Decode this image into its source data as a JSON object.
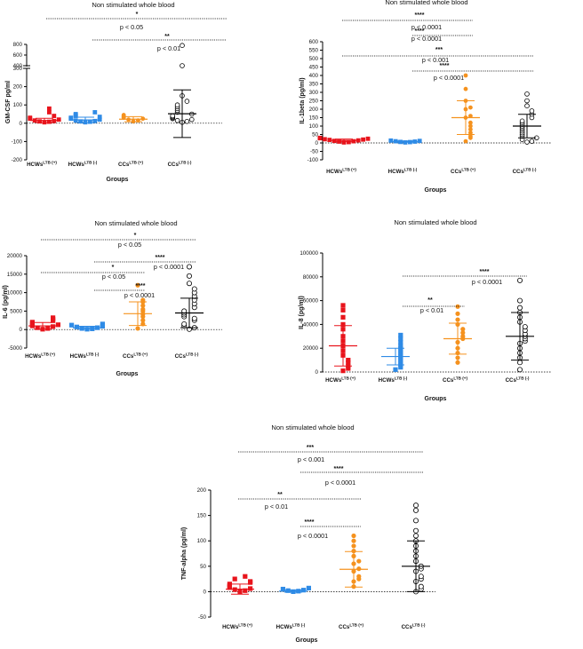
{
  "colors": {
    "hcw_pos": "#e8141c",
    "hcw_neg": "#2f8be6",
    "cc_pos": "#f5921e",
    "cc_neg": "#ffffff"
  },
  "group_names": [
    {
      "base": "HCWs",
      "sup": "LTB (+)"
    },
    {
      "base": "HCWs",
      "sup": "LTB (-)"
    },
    {
      "base": "CCs",
      "sup": "LTB (+)"
    },
    {
      "base": "CCs",
      "sup": "LTB (-)"
    }
  ],
  "chart_data": [
    {
      "id": "gmcsf",
      "type": "scatter",
      "title": "Non stimulated whole blood",
      "ylabel": "GM-CSF pg/ml",
      "xlabel": "Groups",
      "yticks": [
        "-200",
        "-100",
        "0",
        "100",
        "200",
        "300",
        "400",
        "600",
        "800"
      ],
      "ylim": [
        -200,
        800
      ],
      "axis_break": [
        300,
        400
      ],
      "groups": [
        {
          "values": [
            5,
            8,
            10,
            12,
            15,
            20,
            25,
            30,
            40,
            60,
            80
          ],
          "mean": 15,
          "sd": 12
        },
        {
          "values": [
            5,
            8,
            10,
            12,
            15,
            20,
            25,
            30,
            35,
            40,
            45,
            50,
            60
          ],
          "mean": 18,
          "sd": 15
        },
        {
          "values": [
            10,
            15,
            20,
            25,
            30,
            35,
            40,
            45
          ],
          "mean": 22,
          "sd": 14
        },
        {
          "values": [
            5,
            10,
            15,
            20,
            25,
            30,
            35,
            40,
            50,
            60,
            70,
            80,
            90,
            100,
            120,
            150,
            400,
            780
          ],
          "mean": 52,
          "sd": 130
        }
      ],
      "comparisons": [
        {
          "from": 0,
          "to": 3,
          "stars": "*",
          "p": "p < 0.05"
        },
        {
          "from": 1,
          "to": 3,
          "stars": "**",
          "p": "p < 0.01"
        }
      ]
    },
    {
      "id": "il1beta",
      "type": "scatter",
      "title": "Non stimulated whole blood",
      "ylabel": "IL-1beta (pg/ml)",
      "xlabel": "Groups",
      "yticks": [
        "-100",
        "-50",
        "0",
        "50",
        "100",
        "150",
        "200",
        "250",
        "300",
        "350",
        "400",
        "450",
        "500",
        "550",
        "600"
      ],
      "ylim": [
        -100,
        600
      ],
      "groups": [
        {
          "values": [
            3,
            5,
            8,
            10,
            12,
            15,
            18,
            20,
            22,
            25,
            28,
            30
          ],
          "mean": 15,
          "sd": 8
        },
        {
          "values": [
            3,
            5,
            6,
            8,
            10,
            12,
            14
          ],
          "mean": 8,
          "sd": 4
        },
        {
          "values": [
            10,
            30,
            40,
            60,
            80,
            100,
            120,
            150,
            160,
            200,
            210,
            250,
            320,
            400
          ],
          "mean": 150,
          "sd": 100
        },
        {
          "values": [
            5,
            10,
            20,
            30,
            40,
            50,
            60,
            70,
            80,
            90,
            100,
            110,
            120,
            130,
            150,
            170,
            190,
            220,
            250,
            290
          ],
          "mean": 100,
          "sd": 70
        }
      ],
      "comparisons": [
        {
          "from": 0,
          "to": 2,
          "stars": "****",
          "p": "p < 0.0001"
        },
        {
          "from": 1,
          "to": 2,
          "stars": "****",
          "p": "p < 0.0001"
        },
        {
          "from": 0,
          "to": 3,
          "stars": "***",
          "p": "p < 0.001"
        },
        {
          "from": 1,
          "to": 3,
          "stars": "****",
          "p": "p < 0.0001"
        }
      ]
    },
    {
      "id": "il6",
      "type": "scatter",
      "title": "Non stimulated whole blood",
      "ylabel": "IL-6 (pg/ml)",
      "xlabel": "Groups",
      "yticks": [
        "-5000",
        "0",
        "5000",
        "10000",
        "15000",
        "20000"
      ],
      "ylim": [
        -5000,
        20000
      ],
      "groups": [
        {
          "values": [
            100,
            300,
            500,
            800,
            1000,
            1300,
            1600,
            2000,
            2400,
            2800,
            3200
          ],
          "mean": 1000,
          "sd": 900
        },
        {
          "values": [
            100,
            200,
            300,
            500,
            700,
            900,
            1200,
            1500
          ],
          "mean": 500,
          "sd": 400
        },
        {
          "values": [
            300,
            1500,
            2500,
            3500,
            4200,
            5000,
            5500,
            6500,
            7500,
            8000,
            12000
          ],
          "mean": 4300,
          "sd": 3200
        },
        {
          "values": [
            100,
            500,
            1000,
            1500,
            2500,
            3000,
            3500,
            4000,
            4500,
            5000,
            6000,
            7000,
            8000,
            9000,
            10000,
            11000,
            12500,
            14500,
            17000
          ],
          "mean": 4500,
          "sd": 4000
        }
      ],
      "comparisons": [
        {
          "from": 0,
          "to": 3,
          "stars": "*",
          "p": "p < 0.05"
        },
        {
          "from": 1,
          "to": 3,
          "stars": "****",
          "p": "p < 0.0001"
        },
        {
          "from": 0,
          "to": 2,
          "stars": "*",
          "p": "p < 0.05"
        },
        {
          "from": 1,
          "to": 2,
          "stars": "****",
          "p": "p < 0.0001"
        }
      ]
    },
    {
      "id": "il8",
      "type": "scatter",
      "title": "Non stimulated whole blood",
      "ylabel": "IL-8 (pg/ml)",
      "xlabel": "Groups",
      "yticks": [
        "0",
        "20000",
        "40000",
        "60000",
        "80000",
        "100000"
      ],
      "ylim": [
        0,
        100000
      ],
      "groups": [
        {
          "values": [
            1000,
            3000,
            5000,
            8000,
            10000,
            14000,
            18000,
            22000,
            26000,
            30000,
            36000,
            40000,
            46000,
            52000,
            56000
          ],
          "mean": 22000,
          "sd": 17000
        },
        {
          "values": [
            2000,
            4000,
            6000,
            8000,
            10000,
            12000,
            14000,
            16000,
            18000,
            20000,
            22000,
            25000,
            28000,
            31000
          ],
          "mean": 13000,
          "sd": 7000
        },
        {
          "values": [
            8000,
            12000,
            16000,
            20000,
            25000,
            28000,
            30000,
            33000,
            36000,
            40000,
            44000,
            49000,
            55000
          ],
          "mean": 28000,
          "sd": 13000
        },
        {
          "values": [
            2000,
            8000,
            12000,
            16000,
            20000,
            24000,
            26000,
            28000,
            30000,
            32000,
            35000,
            38000,
            42000,
            46000,
            50000,
            54000,
            60000,
            77000
          ],
          "mean": 30000,
          "sd": 20000
        }
      ],
      "comparisons": [
        {
          "from": 1,
          "to": 3,
          "stars": "****",
          "p": "p < 0.0001"
        },
        {
          "from": 1,
          "to": 2,
          "stars": "**",
          "p": "p < 0.01"
        }
      ]
    },
    {
      "id": "tnfa",
      "type": "scatter",
      "title": "Non stimulated whole blood",
      "ylabel": "TNF-alpha (pg/ml)",
      "xlabel": "Groups",
      "yticks": [
        "-50",
        "0",
        "50",
        "100",
        "150",
        "200"
      ],
      "ylim": [
        -50,
        200
      ],
      "groups": [
        {
          "values": [
            0,
            2,
            4,
            6,
            8,
            10,
            12,
            15,
            18,
            20,
            25,
            30
          ],
          "mean": 5,
          "sd": 10
        },
        {
          "values": [
            0,
            1,
            2,
            3,
            5,
            7
          ],
          "mean": 1,
          "sd": 2
        },
        {
          "values": [
            10,
            20,
            25,
            30,
            40,
            45,
            55,
            60,
            70,
            80,
            90,
            100,
            110
          ],
          "mean": 44,
          "sd": 35
        },
        {
          "values": [
            0,
            5,
            10,
            20,
            25,
            30,
            40,
            45,
            50,
            60,
            70,
            80,
            90,
            100,
            110,
            120,
            140,
            160,
            170
          ],
          "mean": 50,
          "sd": 50
        }
      ],
      "comparisons": [
        {
          "from": 0,
          "to": 3,
          "stars": "***",
          "p": "p < 0.001"
        },
        {
          "from": 1,
          "to": 3,
          "stars": "****",
          "p": "p < 0.0001"
        },
        {
          "from": 0,
          "to": 2,
          "stars": "**",
          "p": "p < 0.01"
        },
        {
          "from": 1,
          "to": 2,
          "stars": "****",
          "p": "p < 0.0001"
        }
      ]
    }
  ]
}
